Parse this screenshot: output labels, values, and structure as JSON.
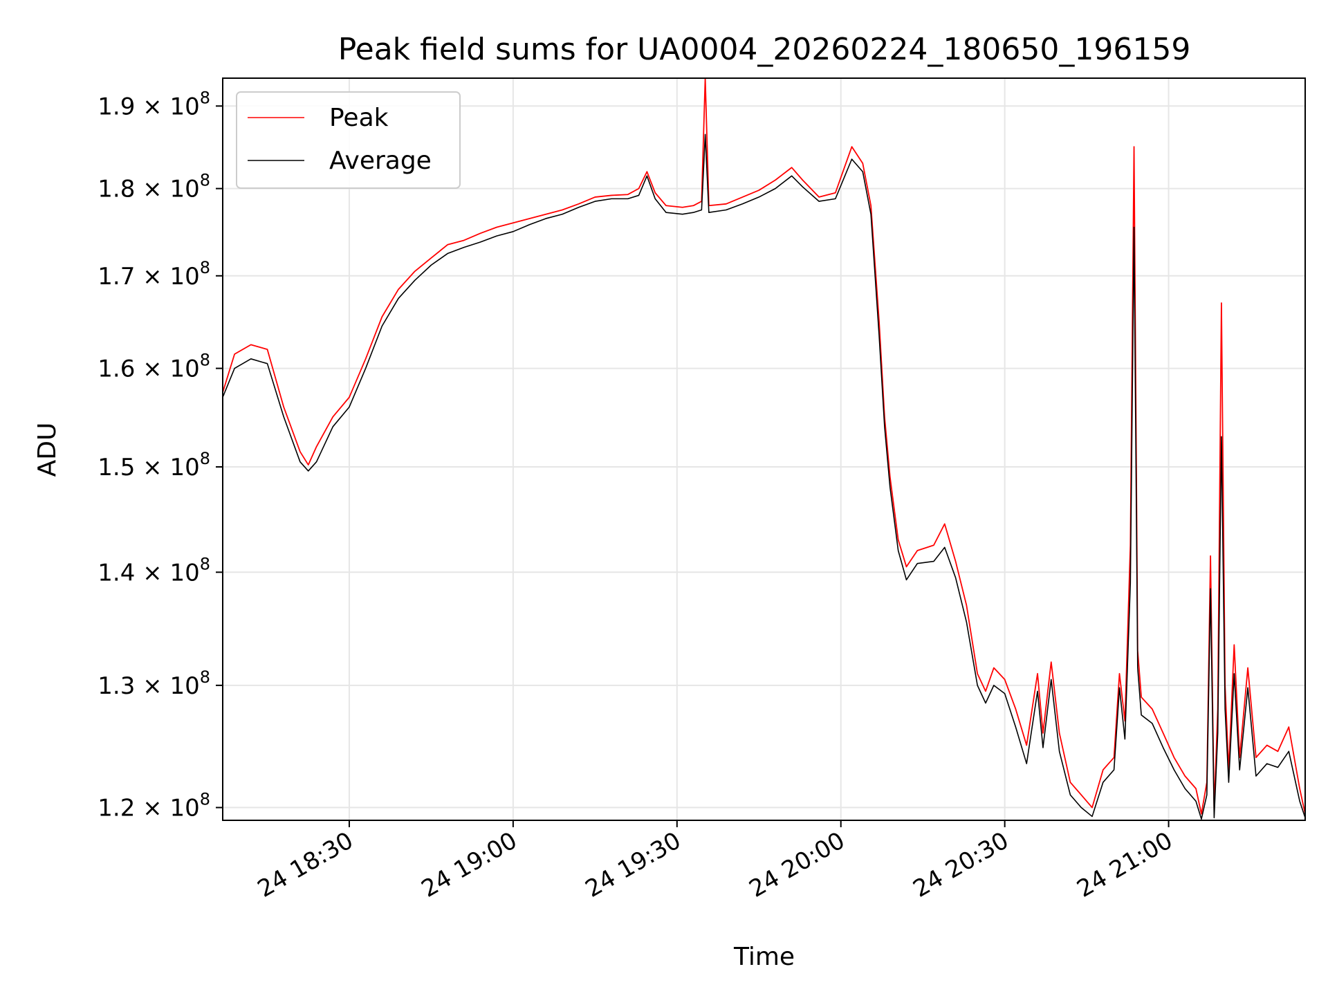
{
  "chart_data": {
    "type": "line",
    "title": "Peak field sums for UA0004_20260224_180650_196159",
    "xlabel": "Time",
    "ylabel": "ADU",
    "y_scale": "log",
    "xlim": [
      "2026-02-24 18:06:50",
      "2026-02-24 21:25:00"
    ],
    "ylim": [
      119000000,
      193500000
    ],
    "x_ticks": [
      {
        "time": "2026-02-24 18:30:00",
        "label": "24 18:30"
      },
      {
        "time": "2026-02-24 19:00:00",
        "label": "24 19:00"
      },
      {
        "time": "2026-02-24 19:30:00",
        "label": "24 19:30"
      },
      {
        "time": "2026-02-24 20:00:00",
        "label": "24 20:00"
      },
      {
        "time": "2026-02-24 20:30:00",
        "label": "24 20:30"
      },
      {
        "time": "2026-02-24 21:00:00",
        "label": "24 21:00"
      }
    ],
    "y_ticks": [
      {
        "value": 120000000,
        "mantissa": "1.2",
        "base": "10",
        "exponent": "8"
      },
      {
        "value": 130000000,
        "mantissa": "1.3",
        "base": "10",
        "exponent": "8"
      },
      {
        "value": 140000000,
        "mantissa": "1.4",
        "base": "10",
        "exponent": "8"
      },
      {
        "value": 150000000,
        "mantissa": "1.5",
        "base": "10",
        "exponent": "8"
      },
      {
        "value": 160000000,
        "mantissa": "1.6",
        "base": "10",
        "exponent": "8"
      },
      {
        "value": 170000000,
        "mantissa": "1.7",
        "base": "10",
        "exponent": "8"
      },
      {
        "value": 180000000,
        "mantissa": "1.8",
        "base": "10",
        "exponent": "8"
      },
      {
        "value": 190000000,
        "mantissa": "1.9",
        "base": "10",
        "exponent": "8"
      }
    ],
    "grid": true,
    "legend": "upper-left",
    "series": [
      {
        "name": "Peak",
        "color": "#ff0000",
        "points": [
          [
            "2026-02-24 18:06:50",
            157500000.0
          ],
          [
            "2026-02-24 18:09:00",
            161500000.0
          ],
          [
            "2026-02-24 18:12:00",
            162500000.0
          ],
          [
            "2026-02-24 18:15:00",
            162000000.0
          ],
          [
            "2026-02-24 18:18:00",
            156000000.0
          ],
          [
            "2026-02-24 18:21:00",
            151500000.0
          ],
          [
            "2026-02-24 18:22:30",
            150200000.0
          ],
          [
            "2026-02-24 18:24:00",
            152000000.0
          ],
          [
            "2026-02-24 18:27:00",
            155000000.0
          ],
          [
            "2026-02-24 18:30:00",
            157000000.0
          ],
          [
            "2026-02-24 18:33:00",
            161000000.0
          ],
          [
            "2026-02-24 18:36:00",
            165500000.0
          ],
          [
            "2026-02-24 18:39:00",
            168500000.0
          ],
          [
            "2026-02-24 18:42:00",
            170500000.0
          ],
          [
            "2026-02-24 18:45:00",
            172000000.0
          ],
          [
            "2026-02-24 18:48:00",
            173500000.0
          ],
          [
            "2026-02-24 18:51:00",
            174000000.0
          ],
          [
            "2026-02-24 18:54:00",
            174800000.0
          ],
          [
            "2026-02-24 18:57:00",
            175500000.0
          ],
          [
            "2026-02-24 19:00:00",
            176000000.0
          ],
          [
            "2026-02-24 19:03:00",
            176500000.0
          ],
          [
            "2026-02-24 19:06:00",
            177000000.0
          ],
          [
            "2026-02-24 19:09:00",
            177500000.0
          ],
          [
            "2026-02-24 19:12:00",
            178200000.0
          ],
          [
            "2026-02-24 19:15:00",
            179000000.0
          ],
          [
            "2026-02-24 19:18:00",
            179200000.0
          ],
          [
            "2026-02-24 19:21:00",
            179300000.0
          ],
          [
            "2026-02-24 19:23:00",
            180000000.0
          ],
          [
            "2026-02-24 19:24:30",
            182000000.0
          ],
          [
            "2026-02-24 19:26:00",
            179500000.0
          ],
          [
            "2026-02-24 19:28:00",
            178000000.0
          ],
          [
            "2026-02-24 19:31:00",
            177800000.0
          ],
          [
            "2026-02-24 19:33:00",
            178000000.0
          ],
          [
            "2026-02-24 19:34:30",
            178500000.0
          ],
          [
            "2026-02-24 19:35:10",
            193500000.0
          ],
          [
            "2026-02-24 19:35:50",
            178000000.0
          ],
          [
            "2026-02-24 19:39:00",
            178200000.0
          ],
          [
            "2026-02-24 19:42:00",
            179000000.0
          ],
          [
            "2026-02-24 19:45:00",
            179800000.0
          ],
          [
            "2026-02-24 19:48:00",
            181000000.0
          ],
          [
            "2026-02-24 19:51:00",
            182500000.0
          ],
          [
            "2026-02-24 19:53:00",
            181000000.0
          ],
          [
            "2026-02-24 19:56:00",
            179000000.0
          ],
          [
            "2026-02-24 19:59:00",
            179500000.0
          ],
          [
            "2026-02-24 20:02:00",
            185000000.0
          ],
          [
            "2026-02-24 20:04:00",
            183000000.0
          ],
          [
            "2026-02-24 20:05:30",
            178000000.0
          ],
          [
            "2026-02-24 20:07:00",
            165000000.0
          ],
          [
            "2026-02-24 20:08:00",
            155000000.0
          ],
          [
            "2026-02-24 20:09:00",
            149000000.0
          ],
          [
            "2026-02-24 20:10:30",
            143000000.0
          ],
          [
            "2026-02-24 20:12:00",
            140500000.0
          ],
          [
            "2026-02-24 20:14:00",
            142000000.0
          ],
          [
            "2026-02-24 20:17:00",
            142500000.0
          ],
          [
            "2026-02-24 20:19:00",
            144500000.0
          ],
          [
            "2026-02-24 20:21:00",
            141000000.0
          ],
          [
            "2026-02-24 20:23:00",
            137000000.0
          ],
          [
            "2026-02-24 20:25:00",
            131000000.0
          ],
          [
            "2026-02-24 20:26:30",
            129500000.0
          ],
          [
            "2026-02-24 20:28:00",
            131500000.0
          ],
          [
            "2026-02-24 20:30:00",
            130500000.0
          ],
          [
            "2026-02-24 20:32:00",
            128000000.0
          ],
          [
            "2026-02-24 20:34:00",
            125000000.0
          ],
          [
            "2026-02-24 20:36:00",
            131000000.0
          ],
          [
            "2026-02-24 20:37:00",
            126000000.0
          ],
          [
            "2026-02-24 20:38:30",
            132000000.0
          ],
          [
            "2026-02-24 20:40:00",
            126000000.0
          ],
          [
            "2026-02-24 20:42:00",
            122000000.0
          ],
          [
            "2026-02-24 20:44:00",
            121000000.0
          ],
          [
            "2026-02-24 20:46:00",
            120000000.0
          ],
          [
            "2026-02-24 20:48:00",
            123000000.0
          ],
          [
            "2026-02-24 20:50:00",
            124000000.0
          ],
          [
            "2026-02-24 20:51:00",
            131000000.0
          ],
          [
            "2026-02-24 20:52:00",
            127000000.0
          ],
          [
            "2026-02-24 20:53:00",
            142500000.0
          ],
          [
            "2026-02-24 20:53:40",
            185000000.0
          ],
          [
            "2026-02-24 20:54:20",
            133000000.0
          ],
          [
            "2026-02-24 20:55:00",
            129000000.0
          ],
          [
            "2026-02-24 20:57:00",
            128000000.0
          ],
          [
            "2026-02-24 20:59:00",
            126000000.0
          ],
          [
            "2026-02-24 21:01:00",
            124000000.0
          ],
          [
            "2026-02-24 21:03:00",
            122500000.0
          ],
          [
            "2026-02-24 21:05:00",
            121500000.0
          ],
          [
            "2026-02-24 21:06:00",
            119500000.0
          ],
          [
            "2026-02-24 21:07:00",
            122000000.0
          ],
          [
            "2026-02-24 21:07:40",
            141500000.0
          ],
          [
            "2026-02-24 21:08:20",
            119800000.0
          ],
          [
            "2026-02-24 21:09:00",
            128000000.0
          ],
          [
            "2026-02-24 21:09:40",
            167000000.0
          ],
          [
            "2026-02-24 21:10:20",
            130000000.0
          ],
          [
            "2026-02-24 21:11:00",
            123000000.0
          ],
          [
            "2026-02-24 21:12:00",
            133500000.0
          ],
          [
            "2026-02-24 21:13:00",
            124000000.0
          ],
          [
            "2026-02-24 21:14:30",
            131500000.0
          ],
          [
            "2026-02-24 21:16:00",
            124000000.0
          ],
          [
            "2026-02-24 21:18:00",
            125000000.0
          ],
          [
            "2026-02-24 21:20:00",
            124500000.0
          ],
          [
            "2026-02-24 21:22:00",
            126500000.0
          ],
          [
            "2026-02-24 21:24:00",
            121500000.0
          ],
          [
            "2026-02-24 21:25:00",
            119500000.0
          ]
        ]
      },
      {
        "name": "Average",
        "color": "#000000",
        "points": [
          [
            "2026-02-24 18:06:50",
            157000000.0
          ],
          [
            "2026-02-24 18:09:00",
            160000000.0
          ],
          [
            "2026-02-24 18:12:00",
            161000000.0
          ],
          [
            "2026-02-24 18:15:00",
            160500000.0
          ],
          [
            "2026-02-24 18:18:00",
            155000000.0
          ],
          [
            "2026-02-24 18:21:00",
            150500000.0
          ],
          [
            "2026-02-24 18:22:30",
            149600000.0
          ],
          [
            "2026-02-24 18:24:00",
            150500000.0
          ],
          [
            "2026-02-24 18:27:00",
            154000000.0
          ],
          [
            "2026-02-24 18:30:00",
            156000000.0
          ],
          [
            "2026-02-24 18:33:00",
            160000000.0
          ],
          [
            "2026-02-24 18:36:00",
            164500000.0
          ],
          [
            "2026-02-24 18:39:00",
            167500000.0
          ],
          [
            "2026-02-24 18:42:00",
            169500000.0
          ],
          [
            "2026-02-24 18:45:00",
            171200000.0
          ],
          [
            "2026-02-24 18:48:00",
            172500000.0
          ],
          [
            "2026-02-24 18:51:00",
            173200000.0
          ],
          [
            "2026-02-24 18:54:00",
            173800000.0
          ],
          [
            "2026-02-24 18:57:00",
            174500000.0
          ],
          [
            "2026-02-24 19:00:00",
            175000000.0
          ],
          [
            "2026-02-24 19:03:00",
            175800000.0
          ],
          [
            "2026-02-24 19:06:00",
            176500000.0
          ],
          [
            "2026-02-24 19:09:00",
            177000000.0
          ],
          [
            "2026-02-24 19:12:00",
            177800000.0
          ],
          [
            "2026-02-24 19:15:00",
            178500000.0
          ],
          [
            "2026-02-24 19:18:00",
            178800000.0
          ],
          [
            "2026-02-24 19:21:00",
            178800000.0
          ],
          [
            "2026-02-24 19:23:00",
            179200000.0
          ],
          [
            "2026-02-24 19:24:30",
            181500000.0
          ],
          [
            "2026-02-24 19:26:00",
            178800000.0
          ],
          [
            "2026-02-24 19:28:00",
            177200000.0
          ],
          [
            "2026-02-24 19:31:00",
            177000000.0
          ],
          [
            "2026-02-24 19:33:00",
            177200000.0
          ],
          [
            "2026-02-24 19:34:30",
            177500000.0
          ],
          [
            "2026-02-24 19:35:10",
            186500000.0
          ],
          [
            "2026-02-24 19:35:50",
            177200000.0
          ],
          [
            "2026-02-24 19:39:00",
            177500000.0
          ],
          [
            "2026-02-24 19:42:00",
            178200000.0
          ],
          [
            "2026-02-24 19:45:00",
            179000000.0
          ],
          [
            "2026-02-24 19:48:00",
            180000000.0
          ],
          [
            "2026-02-24 19:51:00",
            181500000.0
          ],
          [
            "2026-02-24 19:53:00",
            180200000.0
          ],
          [
            "2026-02-24 19:56:00",
            178500000.0
          ],
          [
            "2026-02-24 19:59:00",
            178800000.0
          ],
          [
            "2026-02-24 20:02:00",
            183500000.0
          ],
          [
            "2026-02-24 20:04:00",
            182000000.0
          ],
          [
            "2026-02-24 20:05:30",
            177000000.0
          ],
          [
            "2026-02-24 20:07:00",
            163500000.0
          ],
          [
            "2026-02-24 20:08:00",
            154000000.0
          ],
          [
            "2026-02-24 20:09:00",
            148000000.0
          ],
          [
            "2026-02-24 20:10:30",
            142000000.0
          ],
          [
            "2026-02-24 20:12:00",
            139300000.0
          ],
          [
            "2026-02-24 20:14:00",
            140800000.0
          ],
          [
            "2026-02-24 20:17:00",
            141000000.0
          ],
          [
            "2026-02-24 20:19:00",
            142300000.0
          ],
          [
            "2026-02-24 20:21:00",
            139500000.0
          ],
          [
            "2026-02-24 20:23:00",
            135500000.0
          ],
          [
            "2026-02-24 20:25:00",
            130000000.0
          ],
          [
            "2026-02-24 20:26:30",
            128500000.0
          ],
          [
            "2026-02-24 20:28:00",
            130000000.0
          ],
          [
            "2026-02-24 20:30:00",
            129300000.0
          ],
          [
            "2026-02-24 20:32:00",
            126500000.0
          ],
          [
            "2026-02-24 20:34:00",
            123500000.0
          ],
          [
            "2026-02-24 20:36:00",
            129500000.0
          ],
          [
            "2026-02-24 20:37:00",
            124800000.0
          ],
          [
            "2026-02-24 20:38:30",
            130500000.0
          ],
          [
            "2026-02-24 20:40:00",
            124500000.0
          ],
          [
            "2026-02-24 20:42:00",
            121000000.0
          ],
          [
            "2026-02-24 20:44:00",
            120000000.0
          ],
          [
            "2026-02-24 20:46:00",
            119300000.0
          ],
          [
            "2026-02-24 20:48:00",
            122000000.0
          ],
          [
            "2026-02-24 20:50:00",
            123000000.0
          ],
          [
            "2026-02-24 20:51:00",
            129800000.0
          ],
          [
            "2026-02-24 20:52:00",
            125500000.0
          ],
          [
            "2026-02-24 20:53:00",
            139000000.0
          ],
          [
            "2026-02-24 20:53:40",
            175500000.0
          ],
          [
            "2026-02-24 20:54:20",
            131500000.0
          ],
          [
            "2026-02-24 20:55:00",
            127500000.0
          ],
          [
            "2026-02-24 20:57:00",
            126800000.0
          ],
          [
            "2026-02-24 20:59:00",
            124800000.0
          ],
          [
            "2026-02-24 21:01:00",
            123000000.0
          ],
          [
            "2026-02-24 21:03:00",
            121500000.0
          ],
          [
            "2026-02-24 21:05:00",
            120500000.0
          ],
          [
            "2026-02-24 21:06:00",
            119100000.0
          ],
          [
            "2026-02-24 21:07:00",
            121000000.0
          ],
          [
            "2026-02-24 21:07:40",
            138500000.0
          ],
          [
            "2026-02-24 21:08:20",
            119200000.0
          ],
          [
            "2026-02-24 21:09:00",
            126000000.0
          ],
          [
            "2026-02-24 21:09:40",
            153000000.0
          ],
          [
            "2026-02-24 21:10:20",
            128000000.0
          ],
          [
            "2026-02-24 21:11:00",
            122000000.0
          ],
          [
            "2026-02-24 21:12:00",
            131000000.0
          ],
          [
            "2026-02-24 21:13:00",
            123000000.0
          ],
          [
            "2026-02-24 21:14:30",
            129800000.0
          ],
          [
            "2026-02-24 21:16:00",
            122500000.0
          ],
          [
            "2026-02-24 21:18:00",
            123500000.0
          ],
          [
            "2026-02-24 21:20:00",
            123200000.0
          ],
          [
            "2026-02-24 21:22:00",
            124500000.0
          ],
          [
            "2026-02-24 21:24:00",
            120500000.0
          ],
          [
            "2026-02-24 21:25:00",
            119200000.0
          ]
        ]
      }
    ]
  }
}
